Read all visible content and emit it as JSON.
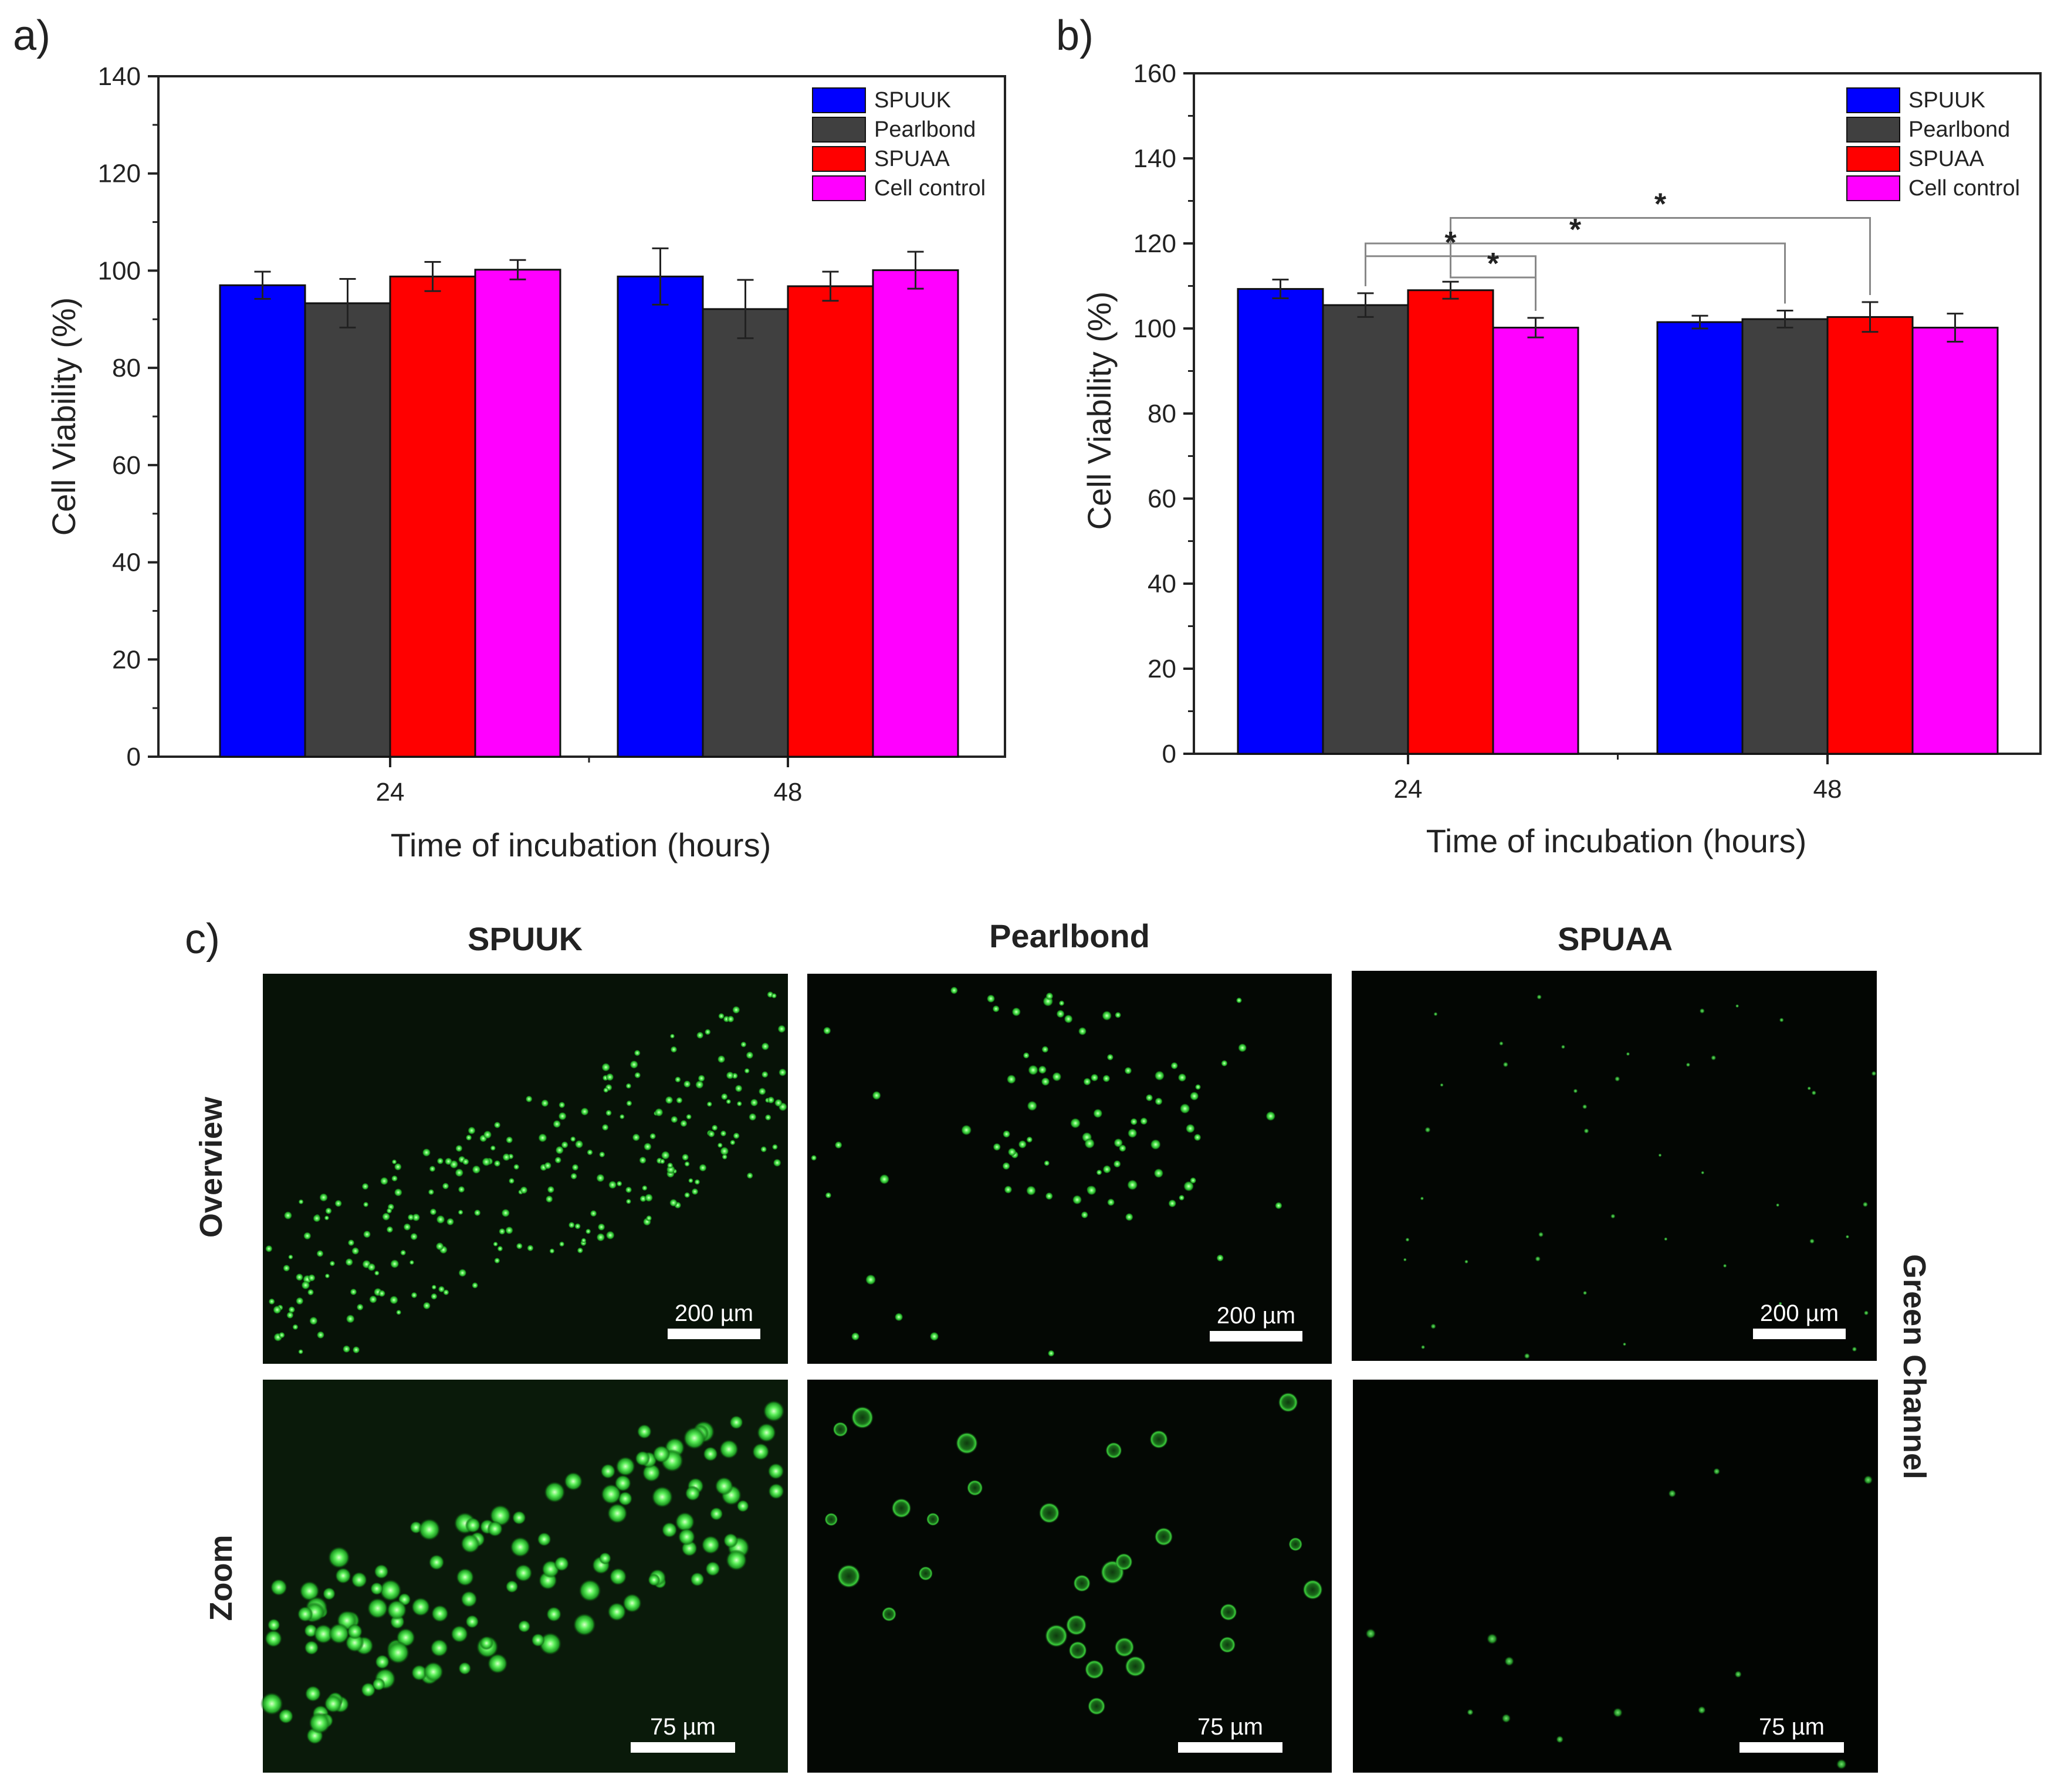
{
  "chart_data": [
    {
      "panel": "a)",
      "type": "bar",
      "categories": [
        "24",
        "48"
      ],
      "series": [
        {
          "name": "SPUUK",
          "values": [
            97,
            98.8
          ],
          "errors": [
            2.8,
            5.8
          ]
        },
        {
          "name": "Pearlbond",
          "values": [
            93.3,
            92.1
          ],
          "errors": [
            5.0,
            6.0
          ]
        },
        {
          "name": "SPUAA",
          "values": [
            98.8,
            96.8
          ],
          "errors": [
            3.0,
            3.0
          ]
        },
        {
          "name": "Cell control",
          "values": [
            100.2,
            100.1
          ],
          "errors": [
            2.0,
            3.8
          ]
        }
      ],
      "xlabel": "Time of incubation (hours)",
      "ylabel": "Cell Viability (%)",
      "ylim": [
        0,
        140
      ],
      "yticks": [
        "0",
        "20",
        "40",
        "60",
        "80",
        "100",
        "120",
        "140"
      ],
      "legend": "top-right",
      "colors": [
        "#0000ff",
        "#404040",
        "#ff0000",
        "#ff00ff"
      ]
    },
    {
      "panel": "b)",
      "type": "bar",
      "categories": [
        "24",
        "48"
      ],
      "series": [
        {
          "name": "SPUUK",
          "values": [
            109.3,
            101.5
          ],
          "errors": [
            2.2,
            1.5
          ]
        },
        {
          "name": "Pearlbond",
          "values": [
            105.5,
            102.2
          ],
          "errors": [
            2.8,
            2.0
          ]
        },
        {
          "name": "SPUAA",
          "values": [
            109.0,
            102.7
          ],
          "errors": [
            2.0,
            3.5
          ]
        },
        {
          "name": "Cell control",
          "values": [
            100.2,
            100.2
          ],
          "errors": [
            2.3,
            3.3
          ]
        }
      ],
      "xlabel": "Time of incubation (hours)",
      "ylabel": "Cell Viability (%)",
      "ylim": [
        0,
        160
      ],
      "yticks": [
        "0",
        "20",
        "40",
        "60",
        "80",
        "100",
        "120",
        "140",
        "160"
      ],
      "legend": "top-right",
      "colors": [
        "#0000ff",
        "#404040",
        "#ff0000",
        "#ff00ff"
      ],
      "significance": [
        {
          "from": "24 Pearlbond",
          "to": "48 Pearlbond",
          "label": "*",
          "level": 120
        },
        {
          "from": "24 SPUAA",
          "to": "48 SPUAA",
          "label": "*",
          "level": 126
        },
        {
          "from": "24 Pearlbond",
          "to": "24 Cell control",
          "label": "*",
          "level": 117
        },
        {
          "from": "24 SPUAA",
          "to": "24 Cell control",
          "label": "*",
          "level": 112
        }
      ]
    }
  ],
  "micrographs": {
    "panel": "c)",
    "columns": [
      "SPUUK",
      "Pearlbond",
      "SPUAA"
    ],
    "rows": [
      "Overview",
      "Zoom"
    ],
    "channel": "Green Channel",
    "scalebars": {
      "overview": "200 µm",
      "zoom": "75 µm"
    }
  }
}
